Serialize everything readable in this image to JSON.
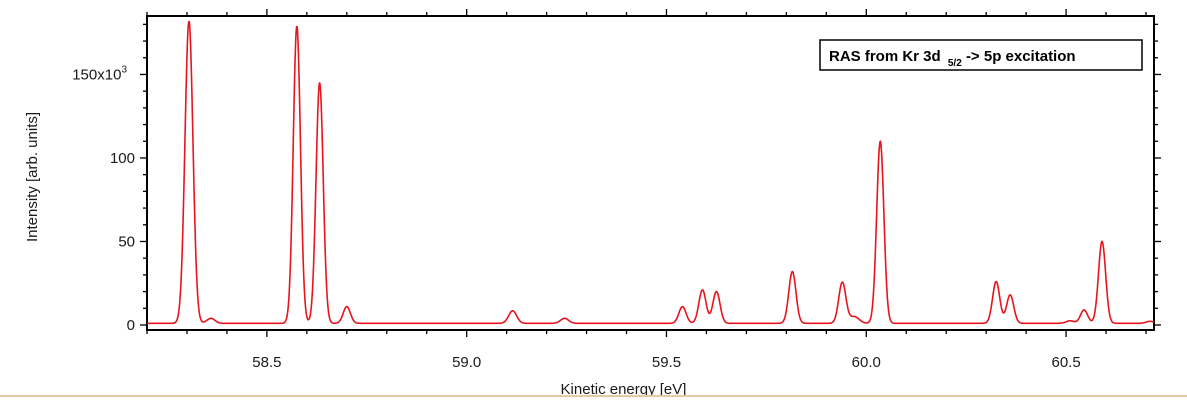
{
  "chart_data": {
    "type": "line",
    "title": "",
    "legend": {
      "main": "RAS from Kr 3d",
      "subscript": "5/2",
      "rest": " -> 5p excitation",
      "placement": "top-right"
    },
    "xlabel": "Kinetic energy [eV]",
    "ylabel": "Intensity [arb. units]",
    "xlim": [
      58.2,
      60.72
    ],
    "ylim": [
      -3000,
      185000
    ],
    "x_ticks": [
      {
        "value": 58.5,
        "label": "58.5"
      },
      {
        "value": 59.0,
        "label": "59.0"
      },
      {
        "value": 59.5,
        "label": "59.5"
      },
      {
        "value": 60.0,
        "label": "60.0"
      },
      {
        "value": 60.5,
        "label": "60.5"
      }
    ],
    "y_ticks": [
      {
        "value": 0,
        "label": "0"
      },
      {
        "value": 50000,
        "label": "50"
      },
      {
        "value": 100000,
        "label": "100"
      },
      {
        "value": 150000,
        "label": "150x10"
      }
    ],
    "y_tick_exponent": "3",
    "grid": false,
    "series": [
      {
        "color": "#e8141c",
        "baseline": 1000,
        "peaks": [
          {
            "x": 58.305,
            "height": 181000,
            "width": 0.01
          },
          {
            "x": 58.36,
            "height": 3000,
            "width": 0.01
          },
          {
            "x": 58.575,
            "height": 178000,
            "width": 0.009
          },
          {
            "x": 58.632,
            "height": 144000,
            "width": 0.009
          },
          {
            "x": 58.7,
            "height": 10000,
            "width": 0.009
          },
          {
            "x": 59.115,
            "height": 7500,
            "width": 0.01
          },
          {
            "x": 59.245,
            "height": 3000,
            "width": 0.01
          },
          {
            "x": 59.54,
            "height": 10000,
            "width": 0.009
          },
          {
            "x": 59.59,
            "height": 20000,
            "width": 0.009
          },
          {
            "x": 59.625,
            "height": 19000,
            "width": 0.009
          },
          {
            "x": 59.815,
            "height": 31000,
            "width": 0.009
          },
          {
            "x": 59.94,
            "height": 24500,
            "width": 0.009
          },
          {
            "x": 59.97,
            "height": 4000,
            "width": 0.012
          },
          {
            "x": 60.035,
            "height": 109000,
            "width": 0.009
          },
          {
            "x": 60.325,
            "height": 25000,
            "width": 0.009
          },
          {
            "x": 60.36,
            "height": 17000,
            "width": 0.009
          },
          {
            "x": 60.51,
            "height": 1500,
            "width": 0.01
          },
          {
            "x": 60.545,
            "height": 8000,
            "width": 0.009
          },
          {
            "x": 60.59,
            "height": 49000,
            "width": 0.009
          },
          {
            "x": 60.71,
            "height": 1200,
            "width": 0.01
          }
        ]
      }
    ]
  }
}
